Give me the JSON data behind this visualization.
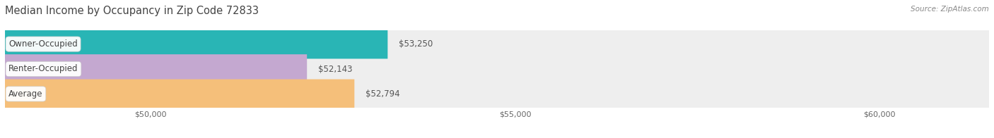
{
  "title": "Median Income by Occupancy in Zip Code 72833",
  "source": "Source: ZipAtlas.com",
  "categories": [
    "Owner-Occupied",
    "Renter-Occupied",
    "Average"
  ],
  "values": [
    53250,
    52143,
    52794
  ],
  "labels": [
    "$53,250",
    "$52,143",
    "$52,794"
  ],
  "bar_colors": [
    "#29b5b5",
    "#c4a8d0",
    "#f5bf7a"
  ],
  "bar_track_color": "#eeeeee",
  "xlim_min": 48000,
  "xlim_max": 61500,
  "xticks": [
    50000,
    55000,
    60000
  ],
  "xtick_labels": [
    "$50,000",
    "$55,000",
    "$60,000"
  ],
  "title_fontsize": 10.5,
  "label_fontsize": 8.5,
  "bar_height": 0.62,
  "fig_bg_color": "#ffffff",
  "row_bg_colors": [
    "#f0f0f0",
    "#f8f8f8",
    "#f0f0f0"
  ],
  "value_label_color": "#555555",
  "cat_label_color": "#444444",
  "grid_color": "#d8d8d8",
  "source_color": "#888888"
}
